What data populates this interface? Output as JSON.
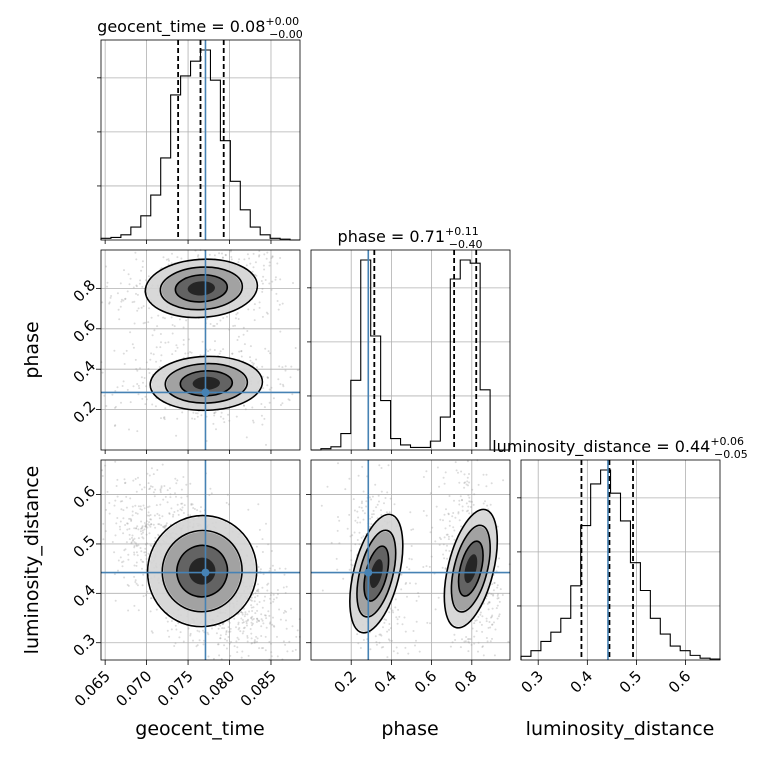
{
  "chart_data": {
    "type": "corner",
    "parameters": [
      "geocent_time",
      "phase",
      "luminosity_distance"
    ],
    "titles": [
      {
        "name": "geocent_time",
        "median": "0.08",
        "plus": "+0.00",
        "minus": "−0.00"
      },
      {
        "name": "phase",
        "median": "0.71",
        "plus": "+0.11",
        "minus": "−0.40"
      },
      {
        "name": "luminosity_distance",
        "median": "0.44",
        "plus": "+0.06",
        "minus": "−0.05"
      }
    ],
    "axis_labels": [
      "geocent_time",
      "phase",
      "luminosity_distance"
    ],
    "truths": {
      "geocent_time": 0.0771,
      "phase": 0.285,
      "luminosity_distance": 0.442
    },
    "quantiles": {
      "geocent_time": [
        0.0738,
        0.0765,
        0.0793
      ],
      "phase": [
        0.315,
        0.712,
        0.822
      ],
      "luminosity_distance": [
        0.388,
        0.445,
        0.493
      ]
    },
    "ranges": {
      "geocent_time": [
        0.0645,
        0.0885
      ],
      "phase": [
        0.0,
        0.99
      ],
      "luminosity_distance": [
        0.265,
        0.67
      ]
    },
    "ticks": {
      "geocent_time": [
        0.065,
        0.07,
        0.075,
        0.08,
        0.085
      ],
      "phase": [
        0.2,
        0.4,
        0.6,
        0.8
      ],
      "luminosity_distance": [
        0.3,
        0.4,
        0.5,
        0.6
      ]
    },
    "tick_labels": {
      "geocent_time": [
        "0.065",
        "0.070",
        "0.075",
        "0.080",
        "0.085"
      ],
      "phase": [
        "0.2",
        "0.4",
        "0.6",
        "0.8"
      ],
      "luminosity_distance": [
        "0.3",
        "0.4",
        "0.5",
        "0.6"
      ]
    },
    "histograms": {
      "geocent_time": {
        "edges": [
          0.0645,
          0.0657,
          0.0669,
          0.0681,
          0.0693,
          0.0705,
          0.0717,
          0.0729,
          0.0741,
          0.0753,
          0.0765,
          0.0777,
          0.0789,
          0.0801,
          0.0813,
          0.0825,
          0.0837,
          0.0849,
          0.0861,
          0.0873,
          0.0885
        ],
        "counts": [
          2,
          3,
          6,
          15,
          28,
          52,
          95,
          168,
          190,
          207,
          220,
          185,
          115,
          68,
          35,
          15,
          6,
          2,
          1,
          0
        ]
      },
      "phase": {
        "edges": [
          0.0,
          0.0495,
          0.099,
          0.1485,
          0.198,
          0.2475,
          0.297,
          0.3465,
          0.396,
          0.4455,
          0.495,
          0.5445,
          0.594,
          0.6435,
          0.693,
          0.7425,
          0.792,
          0.8415,
          0.891,
          0.9405,
          0.99
        ],
        "counts": [
          0,
          2,
          5,
          26,
          110,
          300,
          180,
          78,
          18,
          8,
          4,
          4,
          14,
          52,
          270,
          300,
          295,
          95,
          0,
          0
        ]
      },
      "luminosity_distance": {
        "edges": [
          0.265,
          0.28525,
          0.3055,
          0.32575,
          0.346,
          0.36625,
          0.3865,
          0.40675,
          0.427,
          0.44725,
          0.4675,
          0.48775,
          0.508,
          0.52825,
          0.5485,
          0.56875,
          0.589,
          0.60925,
          0.6295,
          0.64975,
          0.67
        ],
        "counts": [
          4,
          10,
          20,
          30,
          45,
          80,
          145,
          190,
          205,
          180,
          150,
          105,
          75,
          45,
          28,
          15,
          10,
          5,
          2,
          1
        ]
      }
    },
    "grid": true,
    "colors": {
      "truth": "#4682b4",
      "hist": "#000000",
      "samples": "#9a9a9a"
    }
  }
}
